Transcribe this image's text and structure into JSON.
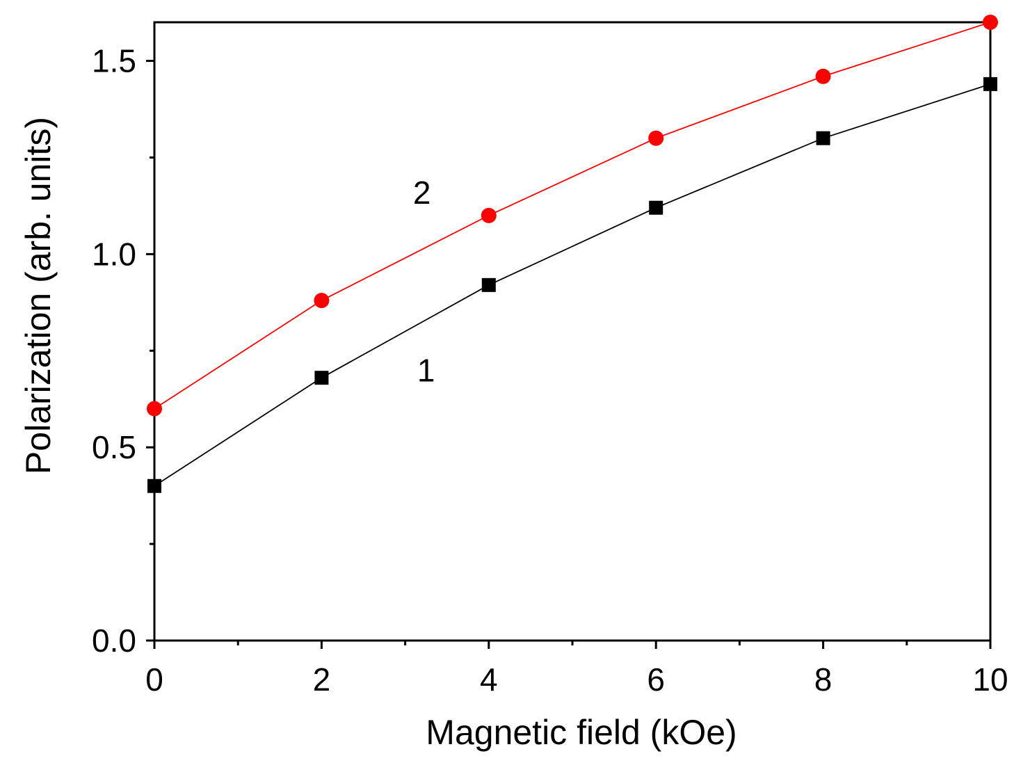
{
  "chart_data": {
    "type": "line",
    "xlabel": "Magnetic field (kOe)",
    "ylabel": "Polarization (arb. units)",
    "xlim": [
      0,
      10
    ],
    "ylim": [
      0,
      1.6
    ],
    "x_ticks": [
      0,
      2,
      4,
      6,
      8,
      10
    ],
    "x_tick_labels": [
      "0",
      "2",
      "4",
      "6",
      "8",
      "10"
    ],
    "x_minor_ticks": [
      1,
      3,
      5,
      7,
      9
    ],
    "y_ticks": [
      0,
      0.5,
      1.0,
      1.5
    ],
    "y_tick_labels": [
      "0.0",
      "0.5",
      "1.0",
      "1.5"
    ],
    "y_minor_ticks": [
      0.25,
      0.75,
      1.25
    ],
    "grid": false,
    "series": [
      {
        "label": "1",
        "marker": "square",
        "color": "#000000",
        "x": [
          0,
          2,
          4,
          6,
          8,
          10
        ],
        "y": [
          0.4,
          0.68,
          0.92,
          1.12,
          1.3,
          1.44
        ]
      },
      {
        "label": "2",
        "marker": "circle",
        "color": "#ff0000",
        "x": [
          0,
          2,
          4,
          6,
          8,
          10
        ],
        "y": [
          0.6,
          0.88,
          1.1,
          1.3,
          1.46,
          1.6
        ]
      }
    ],
    "annotations": [
      {
        "text": "2",
        "x": 3.2,
        "y": 1.13
      },
      {
        "text": "1",
        "x": 3.25,
        "y": 0.67
      }
    ]
  }
}
